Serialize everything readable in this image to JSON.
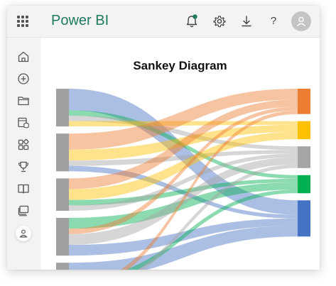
{
  "app": {
    "title": "Power BI"
  },
  "header": {
    "icons": [
      "notification-bell-icon",
      "gear-icon",
      "download-icon",
      "help-icon",
      "user-avatar-icon"
    ],
    "help_label": "?",
    "notification_dot_color": "#1e7a60"
  },
  "sidebar": {
    "items": [
      {
        "name": "home-icon"
      },
      {
        "name": "create-icon"
      },
      {
        "name": "browse-folder-icon"
      },
      {
        "name": "data-hub-icon"
      },
      {
        "name": "apps-icon"
      },
      {
        "name": "goals-trophy-icon"
      },
      {
        "name": "learn-book-icon"
      },
      {
        "name": "workspaces-icon"
      },
      {
        "name": "my-workspace-icon"
      }
    ]
  },
  "chart_data": {
    "type": "sankey",
    "title": "Sankey Diagram",
    "source_color": "#a0a0a0",
    "targets": [
      {
        "color": "#ed7d31"
      },
      {
        "color": "#ffc000"
      },
      {
        "color": "#a5a5a5"
      },
      {
        "color": "#00b050"
      },
      {
        "color": "#4472c4"
      }
    ],
    "sources_count": 5,
    "flows": [
      {
        "source": 0,
        "target": 4,
        "value": 4
      },
      {
        "source": 0,
        "target": 3,
        "value": 1
      },
      {
        "source": 0,
        "target": 2,
        "value": 1
      },
      {
        "source": 0,
        "target": 1,
        "value": 1
      },
      {
        "source": 1,
        "target": 0,
        "value": 3
      },
      {
        "source": 1,
        "target": 1,
        "value": 2
      },
      {
        "source": 1,
        "target": 2,
        "value": 1
      },
      {
        "source": 1,
        "target": 4,
        "value": 1
      },
      {
        "source": 2,
        "target": 0,
        "value": 2
      },
      {
        "source": 2,
        "target": 1,
        "value": 2
      },
      {
        "source": 2,
        "target": 3,
        "value": 1
      },
      {
        "source": 2,
        "target": 2,
        "value": 1
      },
      {
        "source": 3,
        "target": 3,
        "value": 2
      },
      {
        "source": 3,
        "target": 0,
        "value": 1
      },
      {
        "source": 3,
        "target": 2,
        "value": 2
      },
      {
        "source": 3,
        "target": 4,
        "value": 2
      },
      {
        "source": 4,
        "target": 4,
        "value": 3
      },
      {
        "source": 4,
        "target": 3,
        "value": 1
      },
      {
        "source": 4,
        "target": 0,
        "value": 1
      },
      {
        "source": 4,
        "target": 2,
        "value": 1
      }
    ]
  }
}
